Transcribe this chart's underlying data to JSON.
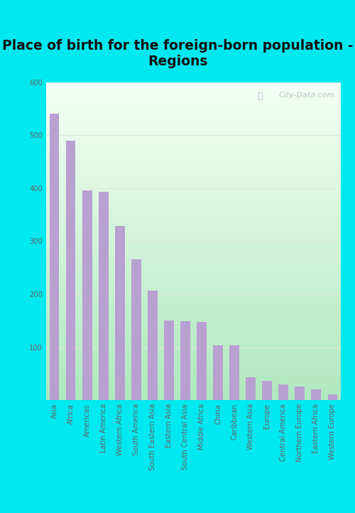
{
  "title": "Place of birth for the foreign-born population -\nRegions",
  "categories": [
    "Asia",
    "Africa",
    "Americas",
    "Latin America",
    "Western Africa",
    "South America",
    "South Eastern Asia",
    "Eastern Asia",
    "South Central Asia",
    "Middle Africa",
    "China",
    "Caribbean",
    "Western Asia",
    "Europe",
    "Central America",
    "Northern Europe",
    "Eastern Africa",
    "Western Europe"
  ],
  "values": [
    540,
    490,
    395,
    393,
    328,
    265,
    207,
    150,
    149,
    148,
    104,
    103,
    43,
    37,
    30,
    26,
    20,
    11
  ],
  "bar_color": "#b8a0d0",
  "background_outer": "#00e8f0",
  "background_inner_topleft": "#f0f8f0",
  "background_inner_bottomleft": "#b0e8c0",
  "ylabel_color": "#666666",
  "title_color": "#111111",
  "tick_color": "#666666",
  "ylim": [
    0,
    600
  ],
  "yticks": [
    0,
    100,
    200,
    300,
    400,
    500,
    600
  ],
  "watermark": "City-Data.com",
  "title_fontsize": 13.5,
  "tick_fontsize": 7.2,
  "grid_color": "#e0e8e0"
}
